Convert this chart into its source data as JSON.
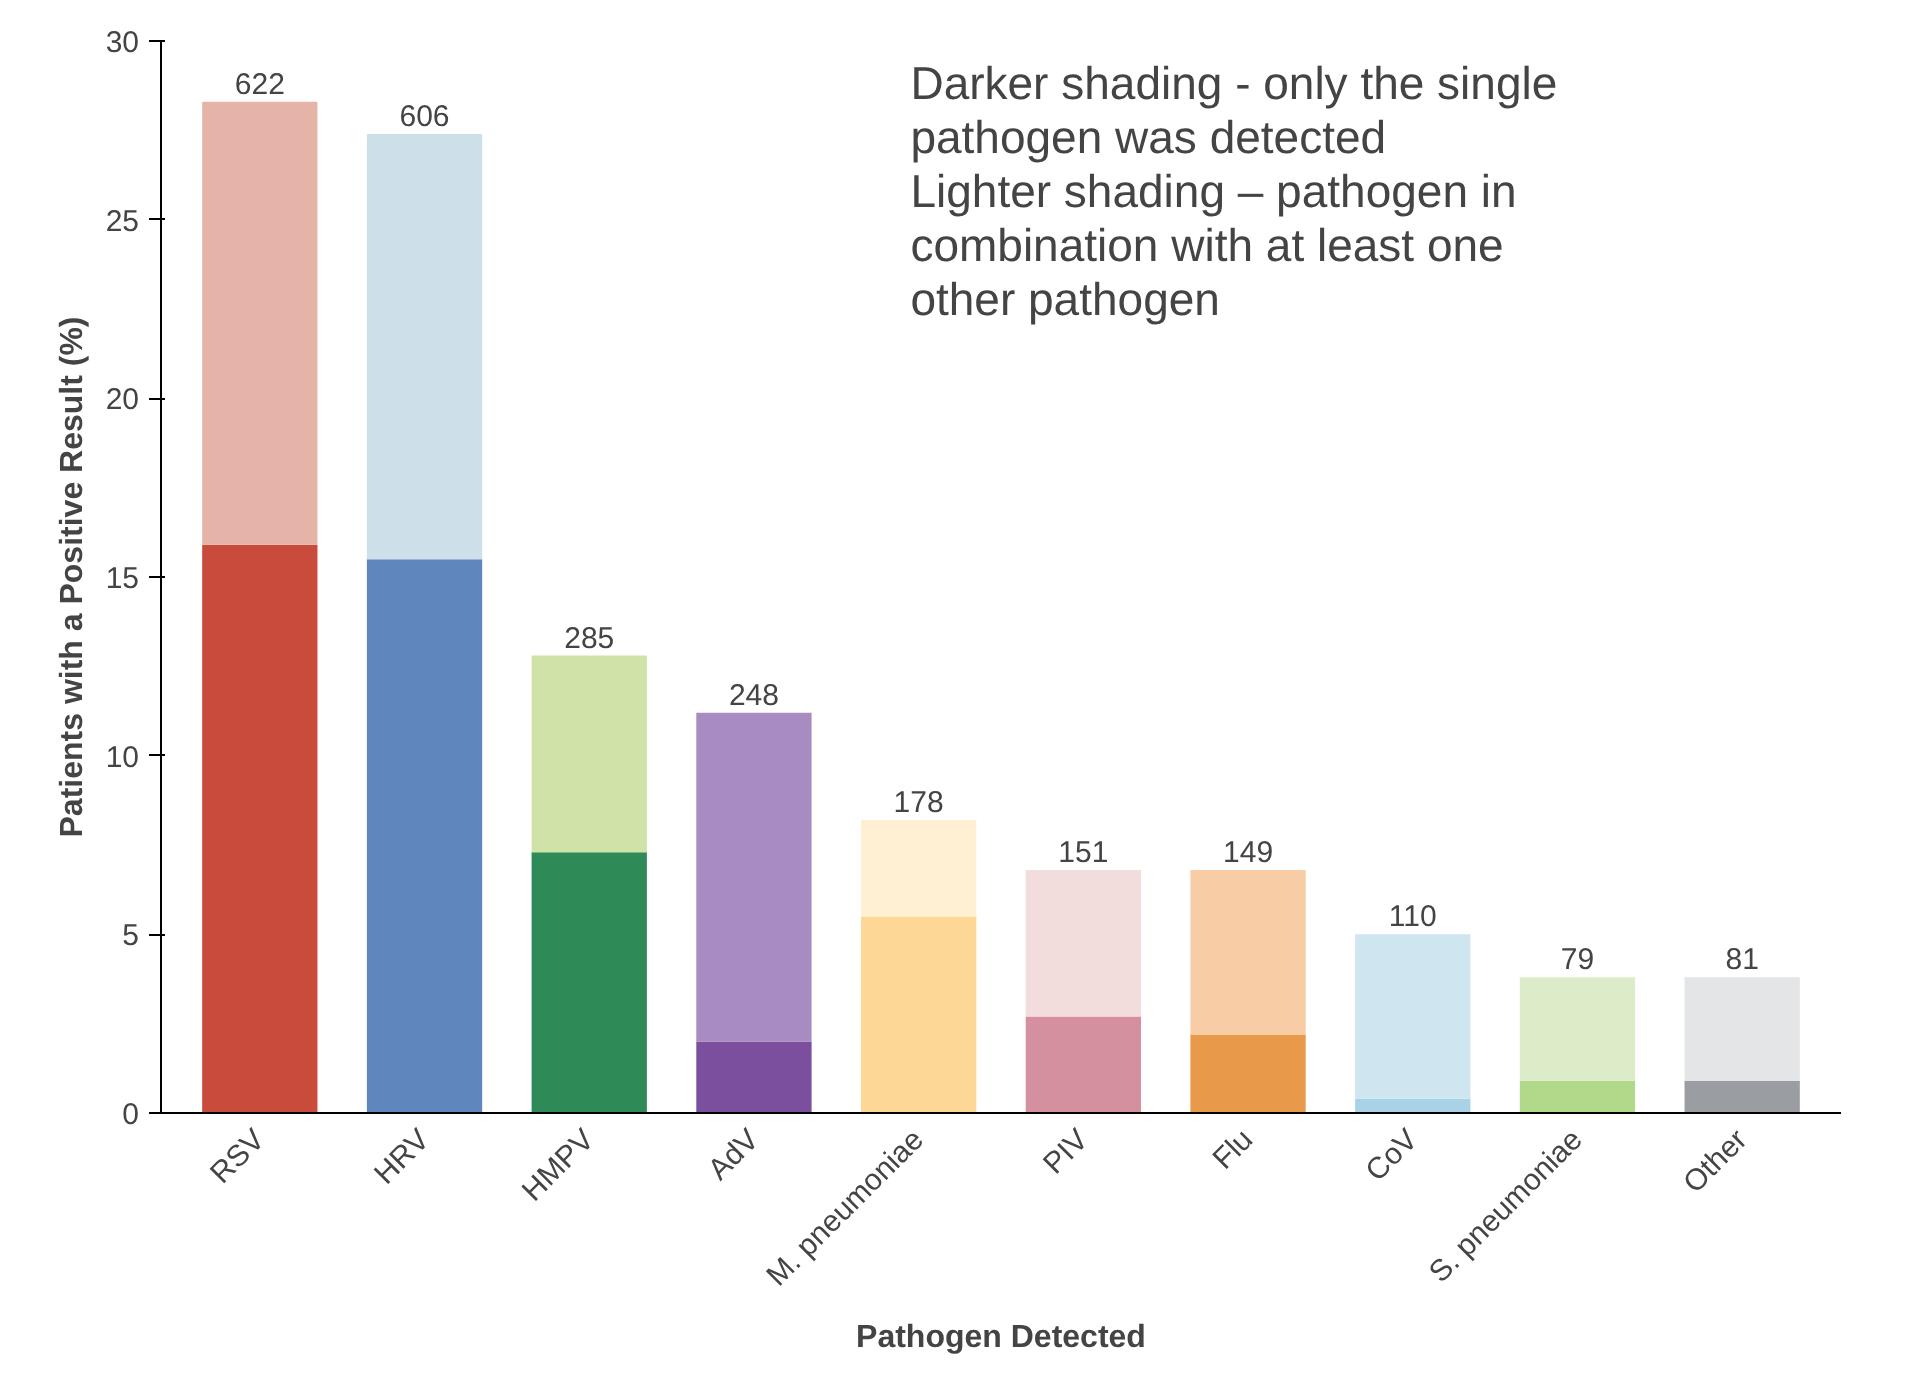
{
  "chart_data": {
    "type": "bar",
    "stacked": true,
    "categories": [
      "RSV",
      "HRV",
      "HMPV",
      "AdV",
      "M. pneumoniae",
      "PIV",
      "Flu",
      "CoV",
      "S. pneumoniae",
      "Other"
    ],
    "series": [
      {
        "colors": [
          "#c84b3c",
          "#5f86bd",
          "#2e8b57",
          "#7b4f9e",
          "#fdd795",
          "#d4909f",
          "#e89a4a",
          "#a8d3e6",
          "#b0d98a",
          "#9a9ea3"
        ],
        "values": [
          15.9,
          15.5,
          7.3,
          2.0,
          5.5,
          2.7,
          2.2,
          0.4,
          0.9,
          0.9
        ]
      },
      {
        "colors": [
          "#e6b3a8",
          "#cde0ea",
          "#cfe2a8",
          "#a88bc0",
          "#fff0d4",
          "#f2dcdc",
          "#f8cca4",
          "#cfe5f0",
          "#dcebc8",
          "#e4e5e7"
        ],
        "values": [
          12.4,
          11.9,
          5.5,
          9.2,
          2.7,
          4.1,
          4.6,
          4.6,
          2.9,
          2.9
        ]
      }
    ],
    "ylim": [
      0,
      30
    ],
    "yticks": [
      0,
      5,
      10,
      15,
      20,
      25,
      30
    ],
    "xlabel": "Pathogen Detected",
    "ylabel": "Patients with a Positive Result (%)",
    "annotations": [
      "Darker shading - only the single pathogen was detected",
      "Lighter shading – pathogen in combination with at least one other pathogen",
      {
        "text": "622",
        "x": "RSV",
        "y": 28.3
      },
      {
        "text": "606",
        "x": "HRV",
        "y": 27.4
      },
      {
        "text": "285",
        "x": "HMPV",
        "y": 12.8
      },
      {
        "text": "248",
        "x": "AdV",
        "y": 11.2
      },
      {
        "text": "178",
        "x": "M. pneumoniae",
        "y": 8.2
      },
      {
        "text": "151",
        "x": "PIV",
        "y": 6.8
      },
      {
        "text": "149",
        "x": "Flu",
        "y": 6.8
      },
      {
        "text": "110",
        "x": "CoV",
        "y": 5.0
      },
      {
        "text": "79",
        "x": "S. pneumoniae",
        "y": 3.8
      },
      {
        "text": "81",
        "x": "Other",
        "y": 3.8
      }
    ],
    "grid": false
  }
}
